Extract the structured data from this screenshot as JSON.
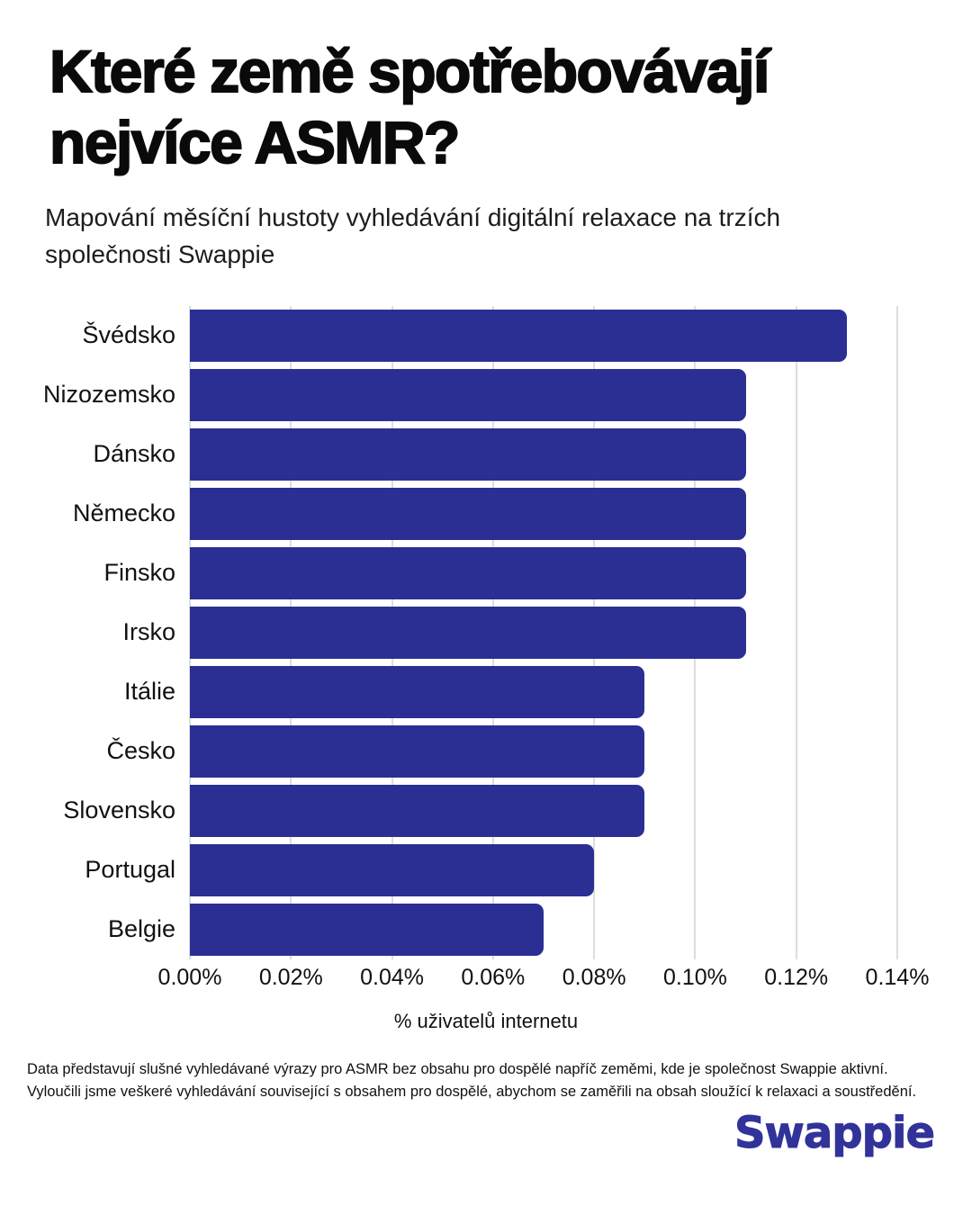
{
  "header": {
    "title": "Které země spotřebovávají nejvíce ASMR?",
    "subtitle": "Mapování měsíční hustoty vyhledávání digitální relaxace na trzích společnosti Swappie"
  },
  "chart_data": {
    "type": "bar",
    "orientation": "horizontal",
    "categories": [
      "Švédsko",
      "Nizozemsko",
      "Dánsko",
      "Německo",
      "Finsko",
      "Irsko",
      "Itálie",
      "Česko",
      "Slovensko",
      "Portugal",
      "Belgie"
    ],
    "values": [
      0.13,
      0.11,
      0.11,
      0.11,
      0.11,
      0.11,
      0.09,
      0.09,
      0.09,
      0.08,
      0.07
    ],
    "value_unit": "% of internet users",
    "title": "Které země spotřebovávají nejvíce ASMR?",
    "xlabel": "% uživatelů internetu",
    "ylabel": "",
    "xlim": [
      0,
      0.14
    ],
    "xticks": [
      "0.00%",
      "0.02%",
      "0.04%",
      "0.06%",
      "0.08%",
      "0.10%",
      "0.12%",
      "0.14%"
    ],
    "grid": "vertical",
    "legend": "none",
    "bar_color": "#2b2e93"
  },
  "footer": {
    "note": "Data představují slušné vyhledávané výrazy pro ASMR bez obsahu pro dospělé napříč zeměmi, kde je společnost Swappie aktivní. Vyloučili jsme veškeré vyhledávání související s obsahem pro dospělé, abychom se zaměřili na obsah sloužící k relaxaci a soustředění.",
    "brand": "Swappie"
  },
  "colors": {
    "bar": "#2b2e93",
    "brand": "#32329b",
    "grid": "#dddddd",
    "background": "#ffffff",
    "text": "#111111"
  }
}
